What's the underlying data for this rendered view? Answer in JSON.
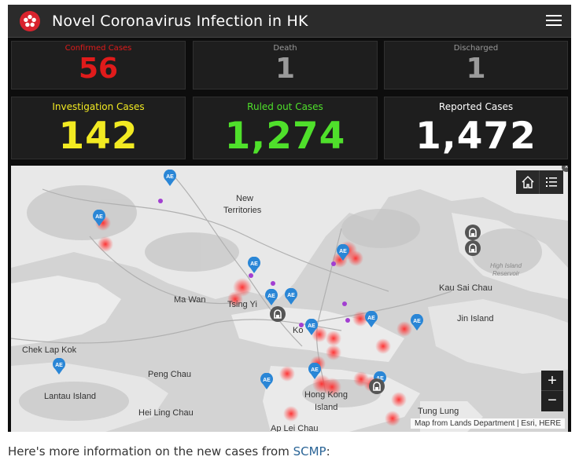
{
  "header": {
    "title": "Novel Coronavirus Infection in HK"
  },
  "stats": {
    "confirmed": {
      "label": "Confirmed Cases",
      "value": "56",
      "color": "#e01b1b"
    },
    "death": {
      "label": "Death",
      "value": "1",
      "color": "#9a9a9a"
    },
    "discharged": {
      "label": "Discharged",
      "value": "1",
      "color": "#9a9a9a"
    },
    "investigation": {
      "label": "Investigation Cases",
      "value": "142",
      "color": "#f2ea22"
    },
    "ruled_out": {
      "label": "Ruled out Cases",
      "value": "1,274",
      "color": "#4fe02b"
    },
    "reported": {
      "label": "Reported Cases",
      "value": "1,472",
      "color": "#ffffff"
    }
  },
  "map": {
    "labels": {
      "new_territories": "New",
      "new_territories_2": "Territories",
      "ma_wan": "Ma Wan",
      "tsing_yi": "Tsing Yi",
      "chek_lap_kok": "Chek Lap Kok",
      "peng_chau": "Peng Chau",
      "lantau_island": "Lantau Island",
      "hei_ling_chau": "Hei Ling Chau",
      "kowloon": "Ko",
      "hong_kong_island": "Hong Kong",
      "hong_kong_island_2": "Island",
      "tung_lung": "Tung Lung",
      "kau_sai_chau": "Kau Sai Chau",
      "jin_island": "Jin Island",
      "high_island": "High Island",
      "high_island_2": "Reservoir",
      "ap_lei_chau": "Ap Lei Chau"
    },
    "attribution": "Map from Lands Department | Esri, HERE",
    "ae_marker_text": "AE",
    "zoom_in": "+",
    "zoom_out": "−",
    "close": "×"
  },
  "caption": {
    "text": "Here's more information on the new cases from ",
    "link": "SCMP",
    "suffix": ":"
  }
}
